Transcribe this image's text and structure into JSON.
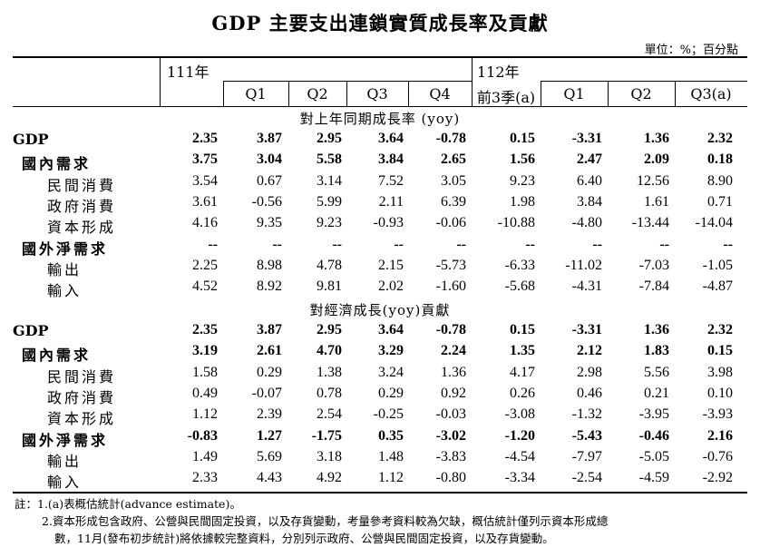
{
  "title": "GDP 主要支出連鎖實質成長率及貢獻",
  "unit": "單位：%；百分點",
  "header": {
    "year1": "111年",
    "year2": "112年",
    "cols": [
      "",
      "Q1",
      "Q2",
      "Q3",
      "Q4",
      "前3季(a)",
      "Q1",
      "Q2",
      "Q3(a)"
    ]
  },
  "sections": [
    {
      "title": "對上年同期成長率 (yoy)",
      "rows": [
        {
          "label": "GDP",
          "level": 0,
          "bold": true,
          "values": [
            "2.35",
            "3.87",
            "2.95",
            "3.64",
            "-0.78",
            "0.15",
            "-3.31",
            "1.36",
            "2.32"
          ]
        },
        {
          "label": "國內需求",
          "level": 1,
          "bold": true,
          "values": [
            "3.75",
            "3.04",
            "5.58",
            "3.84",
            "2.65",
            "1.56",
            "2.47",
            "2.09",
            "0.18"
          ]
        },
        {
          "label": "民間消費",
          "level": 2,
          "bold": false,
          "values": [
            "3.54",
            "0.67",
            "3.14",
            "7.52",
            "3.05",
            "9.23",
            "6.40",
            "12.56",
            "8.90"
          ]
        },
        {
          "label": "政府消費",
          "level": 2,
          "bold": false,
          "values": [
            "3.61",
            "-0.56",
            "5.99",
            "2.11",
            "6.39",
            "1.98",
            "3.84",
            "1.61",
            "0.71"
          ]
        },
        {
          "label": "資本形成",
          "level": 2,
          "bold": false,
          "values": [
            "4.16",
            "9.35",
            "9.23",
            "-0.93",
            "-0.06",
            "-10.88",
            "-4.80",
            "-13.44",
            "-14.04"
          ]
        },
        {
          "label": "國外淨需求",
          "level": 1,
          "bold": true,
          "values": [
            "--",
            "--",
            "--",
            "--",
            "--",
            "--",
            "--",
            "--",
            "--"
          ]
        },
        {
          "label": "輸出",
          "level": 2,
          "bold": false,
          "values": [
            "2.25",
            "8.98",
            "4.78",
            "2.15",
            "-5.73",
            "-6.33",
            "-11.02",
            "-7.03",
            "-1.05"
          ]
        },
        {
          "label": "輸入",
          "level": 2,
          "bold": false,
          "values": [
            "4.52",
            "8.92",
            "9.81",
            "2.02",
            "-1.60",
            "-5.68",
            "-4.31",
            "-7.84",
            "-4.87"
          ]
        }
      ]
    },
    {
      "title": "對經濟成長(yoy)貢獻",
      "rows": [
        {
          "label": "GDP",
          "level": 0,
          "bold": true,
          "values": [
            "2.35",
            "3.87",
            "2.95",
            "3.64",
            "-0.78",
            "0.15",
            "-3.31",
            "1.36",
            "2.32"
          ]
        },
        {
          "label": "國內需求",
          "level": 1,
          "bold": true,
          "values": [
            "3.19",
            "2.61",
            "4.70",
            "3.29",
            "2.24",
            "1.35",
            "2.12",
            "1.83",
            "0.15"
          ]
        },
        {
          "label": "民間消費",
          "level": 2,
          "bold": false,
          "values": [
            "1.58",
            "0.29",
            "1.38",
            "3.24",
            "1.36",
            "4.17",
            "2.98",
            "5.56",
            "3.98"
          ]
        },
        {
          "label": "政府消費",
          "level": 2,
          "bold": false,
          "values": [
            "0.49",
            "-0.07",
            "0.78",
            "0.29",
            "0.92",
            "0.26",
            "0.46",
            "0.21",
            "0.10"
          ]
        },
        {
          "label": "資本形成",
          "level": 2,
          "bold": false,
          "values": [
            "1.12",
            "2.39",
            "2.54",
            "-0.25",
            "-0.03",
            "-3.08",
            "-1.32",
            "-3.95",
            "-3.93"
          ]
        },
        {
          "label": "國外淨需求",
          "level": 1,
          "bold": true,
          "values": [
            "-0.83",
            "1.27",
            "-1.75",
            "0.35",
            "-3.02",
            "-1.20",
            "-5.43",
            "-0.46",
            "2.16"
          ]
        },
        {
          "label": "輸出",
          "level": 2,
          "bold": false,
          "values": [
            "1.49",
            "5.69",
            "3.18",
            "1.48",
            "-3.83",
            "-4.54",
            "-7.97",
            "-5.05",
            "-0.76"
          ]
        },
        {
          "label": "輸入",
          "level": 2,
          "bold": false,
          "values": [
            "2.33",
            "4.43",
            "4.92",
            "1.12",
            "-0.80",
            "-3.34",
            "-2.54",
            "-4.59",
            "-2.92"
          ]
        }
      ]
    }
  ],
  "notes": [
    "註：1.(a)表概估統計(advance estimate)。",
    "2.資本形成包含政府、公營與民間固定投資，以及存貨變動，考量參考資料較為欠缺，概估統計僅列示資本形成總",
    "數，11月(發布初步統計)將依據較完整資料，分別列示政府、公營與民間固定投資，以及存貨變動。"
  ]
}
